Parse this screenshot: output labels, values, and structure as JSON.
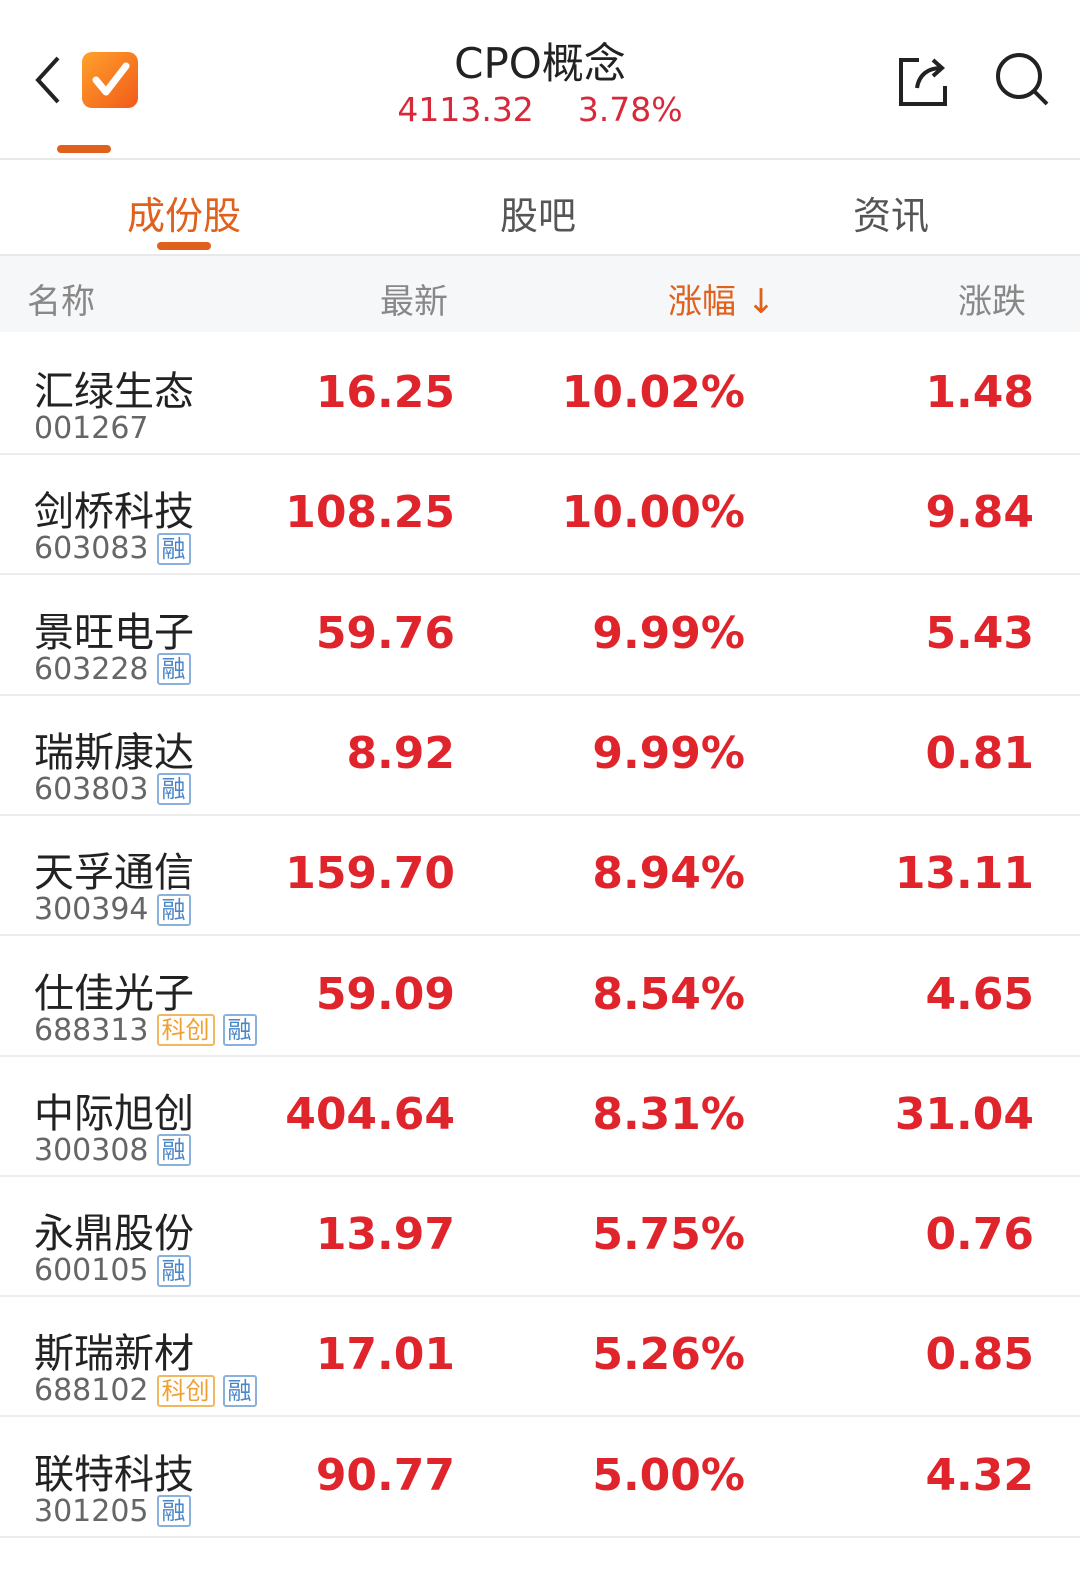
{
  "header": {
    "title": "CPO概念",
    "price": "4113.32",
    "change_pct": "3.78%"
  },
  "tabs": [
    {
      "label": "成份股",
      "active": true
    },
    {
      "label": "股吧"
    },
    {
      "label": "资讯"
    }
  ],
  "columns": {
    "name": "名称",
    "latest": "最新",
    "pct": "涨幅",
    "pct_sort_icon": "arrow-down",
    "change": "涨跌"
  },
  "colors": {
    "accent": "#e0611c",
    "up": "#e0242b"
  },
  "rows": [
    {
      "name": "汇绿生态",
      "code": "001267",
      "badges": [],
      "latest": "16.25",
      "pct": "10.02%",
      "change": "1.48"
    },
    {
      "name": "剑桥科技",
      "code": "603083",
      "badges": [
        "融"
      ],
      "latest": "108.25",
      "pct": "10.00%",
      "change": "9.84"
    },
    {
      "name": "景旺电子",
      "code": "603228",
      "badges": [
        "融"
      ],
      "latest": "59.76",
      "pct": "9.99%",
      "change": "5.43"
    },
    {
      "name": "瑞斯康达",
      "code": "603803",
      "badges": [
        "融"
      ],
      "latest": "8.92",
      "pct": "9.99%",
      "change": "0.81"
    },
    {
      "name": "天孚通信",
      "code": "300394",
      "badges": [
        "融"
      ],
      "latest": "159.70",
      "pct": "8.94%",
      "change": "13.11"
    },
    {
      "name": "仕佳光子",
      "code": "688313",
      "badges": [
        "科创",
        "融"
      ],
      "latest": "59.09",
      "pct": "8.54%",
      "change": "4.65"
    },
    {
      "name": "中际旭创",
      "code": "300308",
      "badges": [
        "融"
      ],
      "latest": "404.64",
      "pct": "8.31%",
      "change": "31.04"
    },
    {
      "name": "永鼎股份",
      "code": "600105",
      "badges": [
        "融"
      ],
      "latest": "13.97",
      "pct": "5.75%",
      "change": "0.76"
    },
    {
      "name": "斯瑞新材",
      "code": "688102",
      "badges": [
        "科创",
        "融"
      ],
      "latest": "17.01",
      "pct": "5.26%",
      "change": "0.85"
    },
    {
      "name": "联特科技",
      "code": "301205",
      "badges": [
        "融"
      ],
      "latest": "90.77",
      "pct": "5.00%",
      "change": "4.32"
    }
  ]
}
